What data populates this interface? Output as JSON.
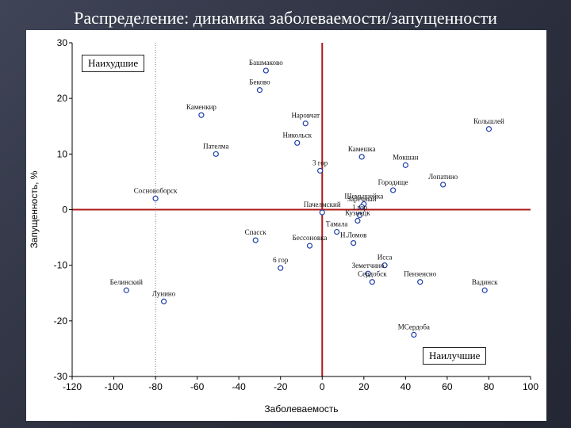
{
  "slide": {
    "title": "Распределение: динамика заболеваемости/запущенности"
  },
  "chart_data": {
    "type": "scatter",
    "xlabel": "Заболеваемость",
    "ylabel": "Запущенность, %",
    "xlim": [
      -120,
      100
    ],
    "ylim": [
      -30,
      30
    ],
    "xticks": [
      -120,
      -100,
      -80,
      -60,
      -40,
      -20,
      0,
      20,
      40,
      60,
      80,
      100
    ],
    "yticks": [
      30,
      20,
      10,
      0,
      -10,
      -20,
      -30
    ],
    "ref_lines": {
      "x": 0,
      "y": 0,
      "color": "#b01818"
    },
    "dotted_x": -80,
    "point_color": "#1f3fa8",
    "annotations": {
      "worst": "Наихудшие",
      "best": "Наилучшие"
    },
    "points": [
      {
        "x": -27,
        "y": 25,
        "label": "Башмаково"
      },
      {
        "x": -30,
        "y": 21.5,
        "label": "Бековo"
      },
      {
        "x": -58,
        "y": 17,
        "label": "Каменкир"
      },
      {
        "x": -8,
        "y": 15.5,
        "label": "Наровчат"
      },
      {
        "x": -12,
        "y": 12,
        "label": "Никольск"
      },
      {
        "x": 80,
        "y": 14.5,
        "label": "Кольшлей"
      },
      {
        "x": -51,
        "y": 10,
        "label": "Пателма"
      },
      {
        "x": 19,
        "y": 9.5,
        "label": "Камешка"
      },
      {
        "x": 40,
        "y": 8,
        "label": "Мокшан"
      },
      {
        "x": -1,
        "y": 7,
        "label": "3 гор"
      },
      {
        "x": 58,
        "y": 4.5,
        "label": "Лопатино"
      },
      {
        "x": 34,
        "y": 3.5,
        "label": "Городище"
      },
      {
        "x": -80,
        "y": 2,
        "label": "Сосновоборск"
      },
      {
        "x": 20,
        "y": 1,
        "label": "Шемышейка"
      },
      {
        "x": 19,
        "y": 0.5,
        "label": "Заречный"
      },
      {
        "x": 0,
        "y": -0.5,
        "label": "Пачелмский"
      },
      {
        "x": 18,
        "y": -1,
        "label": "1 гор"
      },
      {
        "x": 17,
        "y": -2,
        "label": "Кузнецк"
      },
      {
        "x": 7,
        "y": -4,
        "label": "Тамала"
      },
      {
        "x": 15,
        "y": -6,
        "label": "Н.Ломов"
      },
      {
        "x": -32,
        "y": -5.5,
        "label": "Спасск"
      },
      {
        "x": -6,
        "y": -6.5,
        "label": "Бессоновка"
      },
      {
        "x": -20,
        "y": -10.5,
        "label": "6 гор"
      },
      {
        "x": 30,
        "y": -10,
        "label": "Исса"
      },
      {
        "x": 22,
        "y": -11.5,
        "label": "Земетчино"
      },
      {
        "x": 24,
        "y": -13,
        "label": "Сердобск"
      },
      {
        "x": 47,
        "y": -13,
        "label": "Пензенсно"
      },
      {
        "x": 78,
        "y": -14.5,
        "label": "Вадинск"
      },
      {
        "x": -94,
        "y": -14.5,
        "label": "Белинский"
      },
      {
        "x": -76,
        "y": -16.5,
        "label": "Лунино"
      },
      {
        "x": 44,
        "y": -22.5,
        "label": "МСердоба"
      }
    ]
  }
}
